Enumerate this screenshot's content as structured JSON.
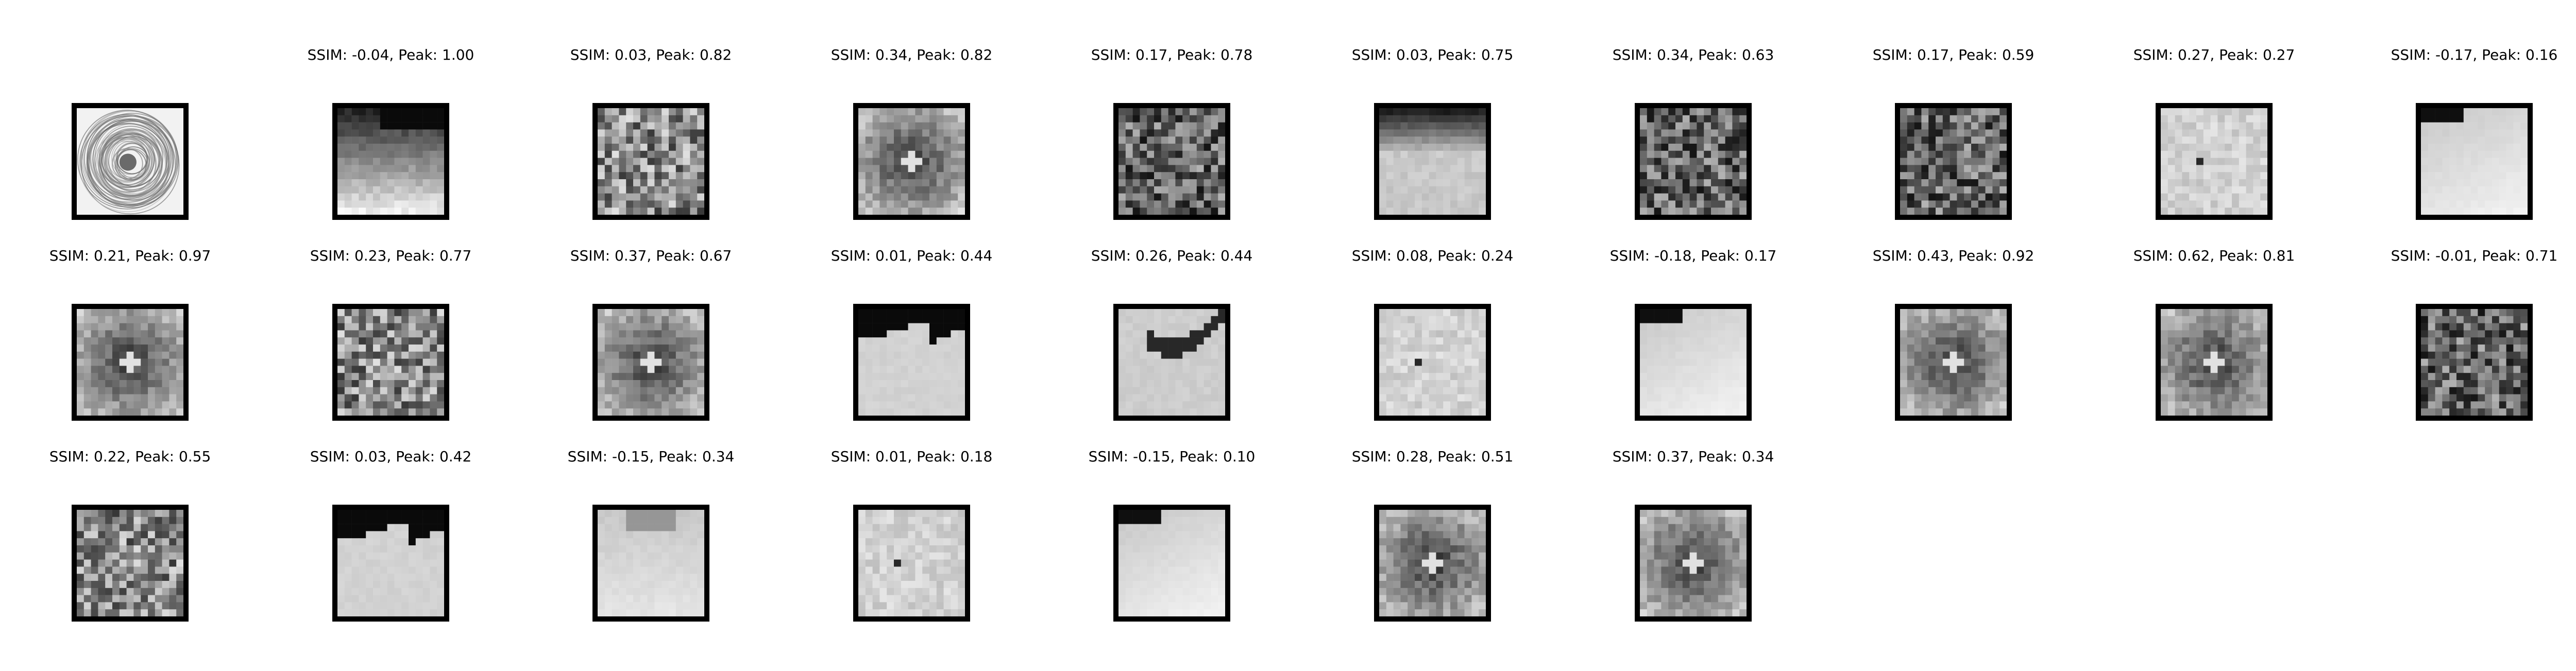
{
  "figure": {
    "cells": [
      {
        "caption": "",
        "kind": "reference"
      },
      {
        "caption": "SSIM: -0.04, Peak: 1.00",
        "kind": "gradient-dark-top"
      },
      {
        "caption": "SSIM: 0.03, Peak: 0.82",
        "kind": "noise-mid"
      },
      {
        "caption": "SSIM: 0.34, Peak: 0.82",
        "kind": "dark-blob"
      },
      {
        "caption": "SSIM: 0.17, Peak: 0.78",
        "kind": "noise-dark"
      },
      {
        "caption": "SSIM: 0.03, Peak: 0.75",
        "kind": "dark-band-top"
      },
      {
        "caption": "SSIM: 0.34, Peak: 0.63",
        "kind": "noise-dark"
      },
      {
        "caption": "SSIM: 0.17, Peak: 0.59",
        "kind": "noise-dark"
      },
      {
        "caption": "SSIM: 0.27, Peak: 0.27",
        "kind": "light-speck"
      },
      {
        "caption": "SSIM: -0.17, Peak: 0.16",
        "kind": "light-gradient-corner"
      },
      {
        "caption": "SSIM: 0.21, Peak: 0.97",
        "kind": "dark-blob"
      },
      {
        "caption": "SSIM: 0.23, Peak: 0.77",
        "kind": "noise-mid"
      },
      {
        "caption": "SSIM: 0.37, Peak: 0.67",
        "kind": "dark-blob"
      },
      {
        "caption": "SSIM: 0.01, Peak: 0.44",
        "kind": "light-corner-dark"
      },
      {
        "caption": "SSIM: 0.26, Peak: 0.44",
        "kind": "arc-dark"
      },
      {
        "caption": "SSIM: 0.08, Peak: 0.24",
        "kind": "light-speck"
      },
      {
        "caption": "SSIM: -0.18, Peak: 0.17",
        "kind": "light-gradient-corner"
      },
      {
        "caption": "SSIM: 0.43, Peak: 0.92",
        "kind": "dark-blob"
      },
      {
        "caption": "SSIM: 0.62, Peak: 0.81",
        "kind": "dark-blob"
      },
      {
        "caption": "SSIM: -0.01, Peak: 0.71",
        "kind": "noise-dark"
      },
      {
        "caption": "SSIM: 0.22, Peak: 0.55",
        "kind": "noise-mid"
      },
      {
        "caption": "SSIM: 0.03, Peak: 0.42",
        "kind": "light-corner-dark"
      },
      {
        "caption": "SSIM: -0.15, Peak: 0.34",
        "kind": "light-dent"
      },
      {
        "caption": "SSIM: 0.01, Peak: 0.18",
        "kind": "light-speck"
      },
      {
        "caption": "SSIM: -0.15, Peak: 0.10",
        "kind": "light-gradient-corner"
      },
      {
        "caption": "SSIM: 0.28, Peak: 0.51",
        "kind": "dark-blob"
      },
      {
        "caption": "SSIM: 0.37, Peak: 0.34",
        "kind": "dark-blob"
      }
    ]
  }
}
